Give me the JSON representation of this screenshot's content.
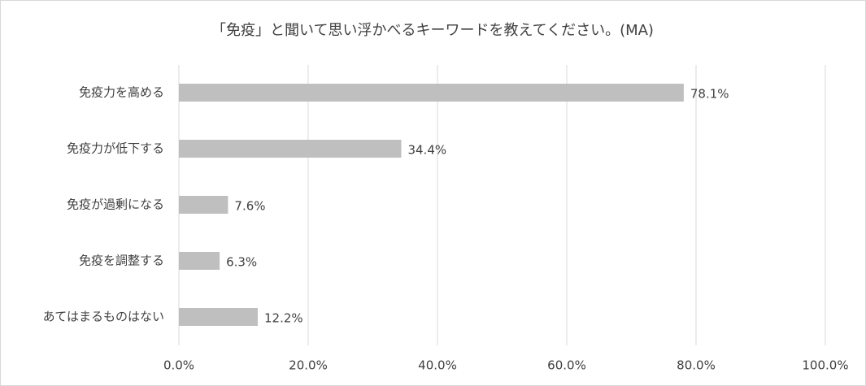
{
  "chart_data": {
    "type": "hbar",
    "title": "「免疫」と聞いて思い浮かべるキーワードを教えてください。(MA)",
    "categories": [
      "免疫力を高める",
      "免疫力が低下する",
      "免疫が過剰になる",
      "免疫を調整する",
      "あてはまるものはない"
    ],
    "values": [
      78.1,
      34.4,
      7.6,
      6.3,
      12.2
    ],
    "value_labels": [
      "78.1%",
      "34.4%",
      "7.6%",
      "6.3%",
      "12.2%"
    ],
    "color": "#bfbfbf",
    "xlim": [
      0,
      100
    ],
    "xticks": [
      {
        "value": 0,
        "label": "0.0%"
      },
      {
        "value": 20,
        "label": "20.0%"
      },
      {
        "value": 40,
        "label": "40.0%"
      },
      {
        "value": 60,
        "label": "60.0%"
      },
      {
        "value": 80,
        "label": "80.0%"
      },
      {
        "value": 100,
        "label": "100.0%"
      }
    ],
    "grid": true
  }
}
